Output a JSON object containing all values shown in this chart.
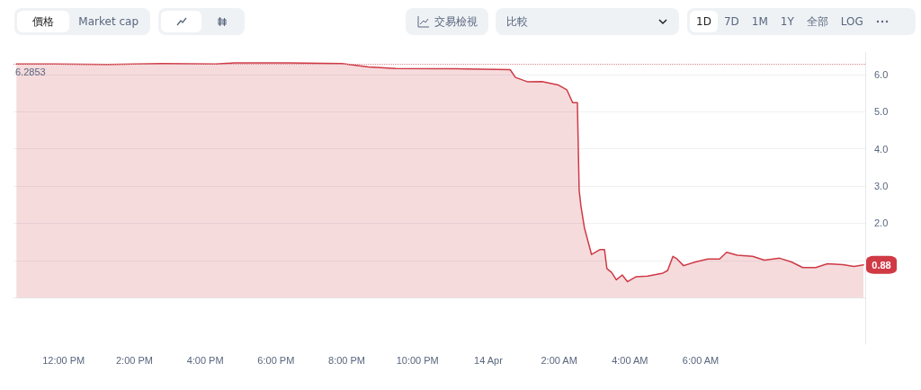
{
  "chart_data": {
    "type": "area",
    "x": [
      "--04-13T10:40",
      "--04-13T11:44",
      "--04-13T13:15",
      "--04-13T14:47",
      "--04-13T16:18",
      "--04-13T16:49",
      "--04-13T18:20",
      "--04-13T19:52",
      "--04-13T20:37",
      "--04-13T21:23",
      "--04-13T23:25",
      "--04-14T00:37",
      "--04-14T00:46",
      "--04-14T01:07",
      "--04-14T01:31",
      "--04-14T01:58",
      "--04-14T02:13",
      "--04-14T02:23",
      "--04-14T02:31",
      "--04-14T02:34",
      "--04-14T02:37",
      "--04-14T02:43",
      "--04-14T02:55",
      "--04-14T03:09",
      "--04-14T03:17",
      "--04-14T03:21",
      "--04-14T03:29",
      "--04-14T03:37",
      "--04-14T03:47",
      "--04-14T03:56",
      "--04-14T04:10",
      "--04-14T04:30",
      "--04-14T04:56",
      "--04-14T05:04",
      "--04-14T05:13",
      "--04-14T05:20",
      "--04-14T05:31",
      "--04-14T05:51",
      "--04-14T06:12",
      "--04-14T06:32",
      "--04-14T06:44",
      "--04-14T07:02",
      "--04-14T07:28",
      "--04-14T07:48",
      "--04-14T08:14",
      "--04-14T08:34",
      "--04-14T08:53",
      "--04-14T09:15",
      "--04-14T09:35",
      "--04-14T10:01",
      "--04-14T10:20",
      "--04-14T10:36"
    ],
    "series": [
      {
        "color": "#cf3a45",
        "values": [
          6.28,
          6.28,
          6.27,
          6.29,
          6.28,
          6.31,
          6.31,
          6.29,
          6.2,
          6.16,
          6.15,
          6.13,
          5.92,
          5.8,
          5.81,
          5.72,
          5.59,
          5.24,
          5.24,
          2.89,
          2.46,
          1.87,
          1.16,
          1.29,
          1.29,
          0.78,
          0.68,
          0.48,
          0.61,
          0.43,
          0.56,
          0.58,
          0.66,
          0.73,
          1.11,
          1.04,
          0.86,
          0.96,
          1.04,
          1.04,
          1.22,
          1.14,
          1.11,
          1.01,
          1.06,
          0.96,
          0.81,
          0.81,
          0.91,
          0.89,
          0.84,
          0.88
        ]
      }
    ],
    "xlim": [
      "--04-13T10:35",
      "--04-14T10:39"
    ],
    "xticks": [
      {
        "value": "--04-13T12:00",
        "label": "12:00 PM"
      },
      {
        "value": "--04-13T14:00",
        "label": "2:00 PM"
      },
      {
        "value": "--04-13T16:00",
        "label": "4:00 PM"
      },
      {
        "value": "--04-13T18:00",
        "label": "6:00 PM"
      },
      {
        "value": "--04-13T20:00",
        "label": "8:00 PM"
      },
      {
        "value": "--04-13T22:00",
        "label": "10:00 PM"
      },
      {
        "value": "--04-14T00:00",
        "label": "14 Apr"
      },
      {
        "value": "--04-14T02:00",
        "label": "2:00 AM"
      },
      {
        "value": "--04-14T04:00",
        "label": "4:00 AM"
      },
      {
        "value": "--04-14T06:00",
        "label": "6:00 AM"
      }
    ],
    "ylim": [
      -1.25,
      6.6
    ],
    "yticks": [
      {
        "value": 0,
        "label": null
      },
      {
        "value": 1,
        "label": null
      },
      {
        "value": 2,
        "label": "2.0"
      },
      {
        "value": 3,
        "label": "3.0"
      },
      {
        "value": 4,
        "label": "4.0"
      },
      {
        "value": 5,
        "label": "5.0"
      },
      {
        "value": 6,
        "label": "6.0"
      }
    ],
    "grid": "y",
    "marker": "none",
    "line_style": "solid",
    "ref_lines": [
      {
        "axis": "y",
        "value": 6.2853,
        "label": "6.2853",
        "color": "#d98a90",
        "line_style": "dotted"
      }
    ],
    "annotations": [
      "價格",
      "Market cap",
      "交易檢視",
      "比較",
      "1D",
      "7D",
      "1M",
      "1Y",
      "全部",
      "LOG",
      {
        "text": "0.88",
        "x": "--04-14T10:36",
        "y": 0.88
      }
    ]
  }
}
